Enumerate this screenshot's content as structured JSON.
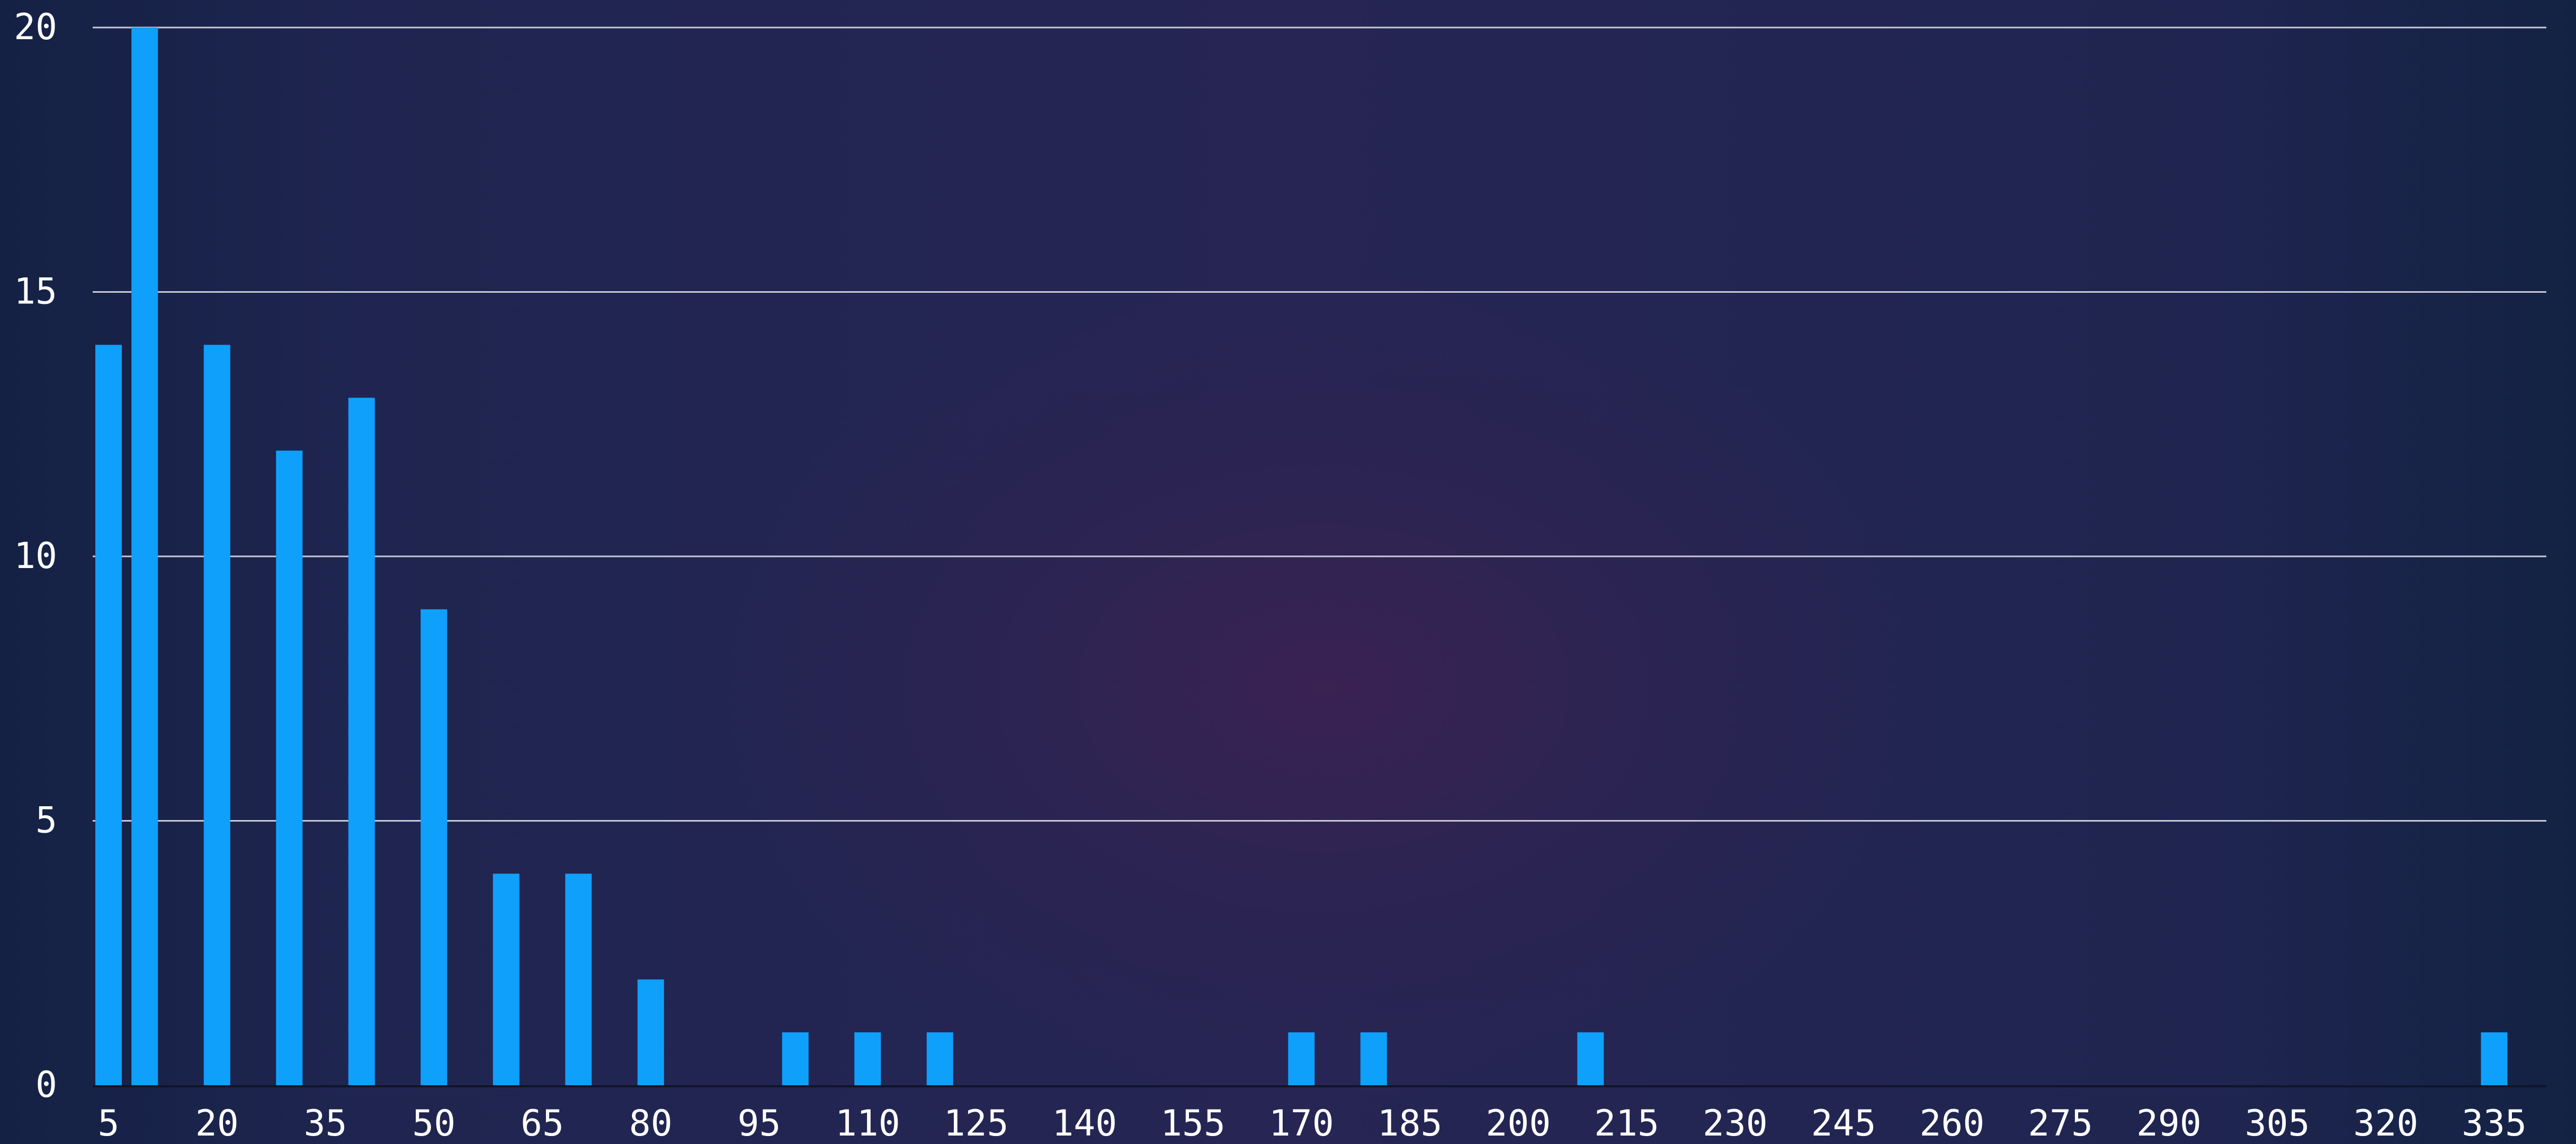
{
  "chart_data": {
    "type": "bar",
    "title": "",
    "xlabel": "",
    "ylabel": "",
    "x_values": [
      5,
      10,
      20,
      30,
      40,
      50,
      60,
      70,
      80,
      100,
      110,
      120,
      170,
      180,
      210,
      335
    ],
    "values": [
      14,
      20,
      14,
      12,
      13,
      9,
      4,
      4,
      2,
      1,
      1,
      1,
      1,
      1,
      1,
      1
    ],
    "xlim": [
      5,
      345
    ],
    "ylim": [
      0,
      20
    ],
    "x_ticks": [
      5,
      20,
      35,
      50,
      65,
      80,
      95,
      110,
      125,
      140,
      155,
      170,
      185,
      200,
      215,
      230,
      245,
      260,
      275,
      290,
      305,
      320,
      335
    ],
    "y_ticks": [
      0,
      5,
      10,
      15,
      20
    ],
    "grid": "horizontal",
    "bar_color": "#0fa0fb",
    "grid_color": "#c8c8d8",
    "text_color": "#ffffff"
  }
}
